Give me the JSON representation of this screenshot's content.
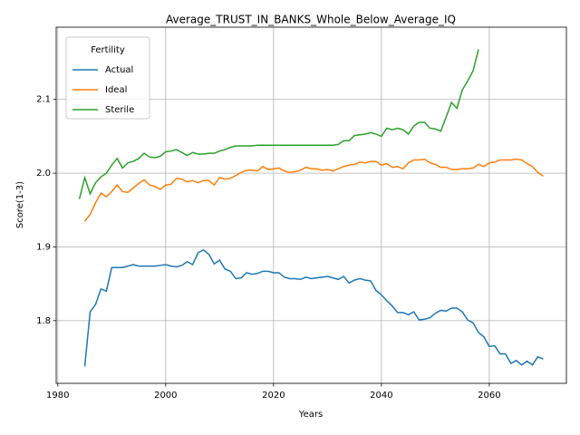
{
  "chart_data": {
    "type": "line",
    "title": "Average_TRUST_IN_BANKS_Whole_Below_Average_IQ",
    "x_label": "Years",
    "y_label": "Score(1-3)",
    "legend_title": "Fertility",
    "legend_position": "upper left",
    "grid": true,
    "xlim": [
      1979.7,
      2074.3
    ],
    "ylim": [
      1.715,
      2.198
    ],
    "xticks": [
      1980,
      2000,
      2020,
      2040,
      2060
    ],
    "yticks": [
      1.8,
      1.9,
      {
        "value": 2.0,
        "label": "2.0"
      },
      2.1
    ],
    "x": [
      1984,
      1985,
      1986,
      1987,
      1988,
      1989,
      1990,
      1991,
      1992,
      1993,
      1994,
      1995,
      1996,
      1997,
      1998,
      1999,
      2000,
      2001,
      2002,
      2003,
      2004,
      2005,
      2006,
      2007,
      2008,
      2009,
      2010,
      2011,
      2012,
      2013,
      2014,
      2015,
      2016,
      2017,
      2018,
      2019,
      2020,
      2021,
      2022,
      2023,
      2024,
      2025,
      2026,
      2027,
      2028,
      2029,
      2030,
      2031,
      2032,
      2033,
      2034,
      2035,
      2036,
      2037,
      2038,
      2039,
      2040,
      2041,
      2042,
      2043,
      2044,
      2045,
      2046,
      2047,
      2048,
      2049,
      2050,
      2051,
      2052,
      2053,
      2054,
      2055,
      2056,
      2057,
      2058,
      2059,
      2060,
      2061,
      2062,
      2063,
      2064,
      2065,
      2066,
      2067,
      2068,
      2069,
      2070
    ],
    "series": [
      {
        "name": "Actual",
        "color": "#1f77b4",
        "values": [
          null,
          1.738,
          1.812,
          1.822,
          1.843,
          1.84,
          1.872,
          1.872,
          1.872,
          1.874,
          1.876,
          1.874,
          1.874,
          1.874,
          1.874,
          1.875,
          1.876,
          1.874,
          1.873,
          1.875,
          1.88,
          1.876,
          1.892,
          1.896,
          1.89,
          1.877,
          1.882,
          1.87,
          1.867,
          1.857,
          1.858,
          1.865,
          1.863,
          1.864,
          1.867,
          1.867,
          1.865,
          1.865,
          1.859,
          1.857,
          1.857,
          1.856,
          1.859,
          1.857,
          1.858,
          1.859,
          1.86,
          1.858,
          1.856,
          1.86,
          1.851,
          1.855,
          1.857,
          1.855,
          1.854,
          1.841,
          1.835,
          1.827,
          1.82,
          1.811,
          1.811,
          1.808,
          1.812,
          1.801,
          1.802,
          1.804,
          1.81,
          1.814,
          1.813,
          1.817,
          1.817,
          1.812,
          1.801,
          1.797,
          1.784,
          1.778,
          1.765,
          1.766,
          1.755,
          1.755,
          1.742,
          1.746,
          1.74,
          1.745,
          1.74,
          1.751,
          1.748
        ]
      },
      {
        "name": "Ideal",
        "color": "#ff7f0e",
        "values": [
          null,
          1.935,
          1.944,
          1.96,
          1.973,
          1.968,
          1.975,
          1.984,
          1.975,
          1.974,
          1.98,
          1.986,
          1.991,
          1.984,
          1.982,
          1.978,
          1.984,
          1.985,
          1.993,
          1.992,
          1.988,
          1.99,
          1.987,
          1.99,
          1.99,
          1.984,
          1.994,
          1.992,
          1.993,
          1.997,
          2.001,
          2.004,
          2.004,
          2.003,
          2.009,
          2.005,
          2.006,
          2.007,
          2.003,
          2.001,
          2.002,
          2.004,
          2.008,
          2.006,
          2.006,
          2.004,
          2.005,
          2.003,
          2.006,
          2.009,
          2.011,
          2.012,
          2.015,
          2.014,
          2.016,
          2.016,
          2.011,
          2.013,
          2.008,
          2.009,
          2.006,
          2.014,
          2.018,
          2.018,
          2.019,
          2.014,
          2.012,
          2.008,
          2.008,
          2.005,
          2.005,
          2.006,
          2.006,
          2.007,
          2.012,
          2.009,
          2.014,
          2.015,
          2.018,
          2.018,
          2.018,
          2.019,
          2.018,
          2.013,
          2.009,
          2.001,
          1.996
        ]
      },
      {
        "name": "Sterile",
        "color": "#2ca02c",
        "values": [
          1.965,
          1.994,
          1.972,
          1.987,
          1.995,
          2.0,
          2.011,
          2.02,
          2.007,
          2.014,
          2.016,
          2.02,
          2.027,
          2.022,
          2.021,
          2.023,
          2.029,
          2.03,
          2.032,
          2.028,
          2.024,
          2.028,
          2.026,
          2.026,
          2.027,
          2.027,
          2.03,
          2.032,
          2.035,
          2.037,
          2.037,
          2.037,
          2.037,
          2.038,
          2.038,
          2.038,
          2.038,
          2.038,
          2.038,
          2.038,
          2.038,
          2.038,
          2.038,
          2.038,
          2.038,
          2.038,
          2.038,
          2.038,
          2.039,
          2.044,
          2.044,
          2.051,
          2.052,
          2.053,
          2.055,
          2.053,
          2.05,
          2.061,
          2.059,
          2.061,
          2.059,
          2.053,
          2.064,
          2.069,
          2.069,
          2.061,
          2.06,
          2.057,
          2.076,
          2.096,
          2.088,
          2.113,
          2.125,
          2.139,
          2.168,
          null,
          null,
          null,
          null,
          null,
          null,
          null,
          null,
          null,
          null,
          null,
          null
        ]
      }
    ]
  }
}
